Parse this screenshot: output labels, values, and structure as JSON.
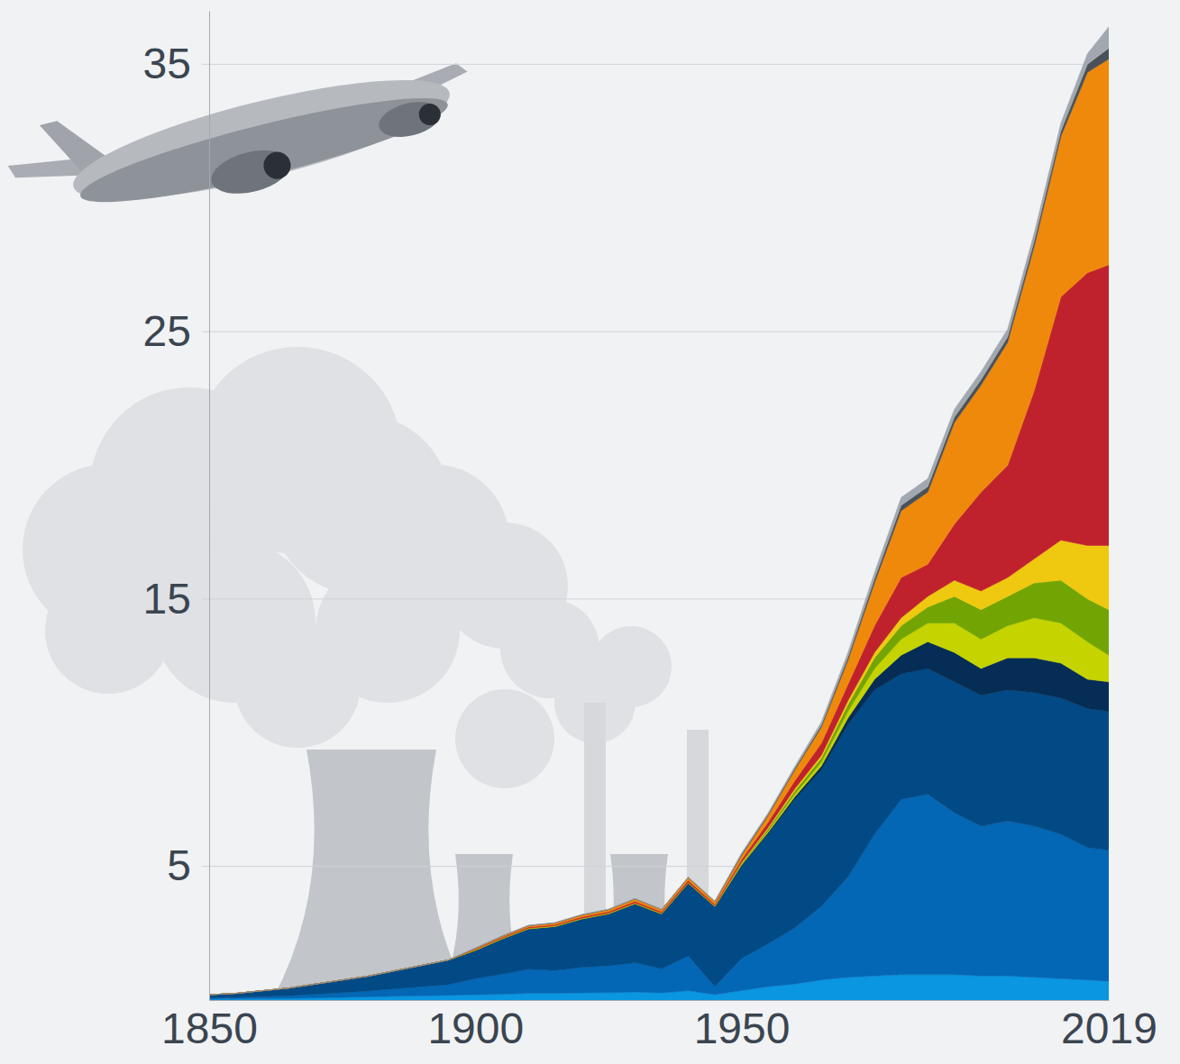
{
  "chart_data": {
    "type": "area",
    "stacked": true,
    "grid": true,
    "x": [
      1850,
      1855,
      1860,
      1865,
      1870,
      1875,
      1880,
      1885,
      1890,
      1895,
      1900,
      1905,
      1910,
      1915,
      1920,
      1925,
      1930,
      1935,
      1940,
      1945,
      1950,
      1955,
      1960,
      1965,
      1970,
      1975,
      1980,
      1985,
      1990,
      1995,
      2000,
      2005,
      2010,
      2015,
      2019
    ],
    "xlim": [
      1850,
      2019
    ],
    "xticks": [
      1850,
      1900,
      1950,
      2019
    ],
    "ylim": [
      0,
      37
    ],
    "yticks": [
      5,
      15,
      25,
      35
    ],
    "series": [
      {
        "color": "#0a96e0",
        "values": [
          0.03,
          0.04,
          0.05,
          0.06,
          0.08,
          0.1,
          0.12,
          0.14,
          0.16,
          0.18,
          0.2,
          0.22,
          0.25,
          0.25,
          0.27,
          0.28,
          0.3,
          0.27,
          0.35,
          0.2,
          0.35,
          0.5,
          0.6,
          0.75,
          0.85,
          0.9,
          0.95,
          0.95,
          0.95,
          0.9,
          0.9,
          0.85,
          0.8,
          0.75,
          0.7
        ]
      },
      {
        "color": "#0467b5",
        "values": [
          0.05,
          0.06,
          0.08,
          0.1,
          0.14,
          0.18,
          0.22,
          0.28,
          0.34,
          0.4,
          0.6,
          0.75,
          0.9,
          0.85,
          0.95,
          1.0,
          1.1,
          0.9,
          1.3,
          0.3,
          1.2,
          1.6,
          2.1,
          2.75,
          3.75,
          5.3,
          6.55,
          6.75,
          6.05,
          5.6,
          5.8,
          5.65,
          5.4,
          4.95,
          4.9
        ]
      },
      {
        "color": "#024a86",
        "values": [
          0.12,
          0.15,
          0.22,
          0.29,
          0.38,
          0.47,
          0.56,
          0.68,
          0.8,
          0.92,
          1.04,
          1.3,
          1.5,
          1.64,
          1.8,
          1.93,
          2.19,
          2.04,
          2.71,
          2.99,
          3.45,
          4.1,
          4.8,
          5.1,
          5.7,
          5.4,
          4.7,
          4.7,
          4.9,
          4.9,
          4.9,
          5.0,
          5.1,
          5.2,
          5.2
        ]
      },
      {
        "color": "#052d55",
        "values": [
          0,
          0,
          0,
          0,
          0,
          0,
          0,
          0,
          0,
          0,
          0.01,
          0.01,
          0.01,
          0.01,
          0.01,
          0.01,
          0.01,
          0.01,
          0.01,
          0.01,
          0.05,
          0.07,
          0.1,
          0.15,
          0.25,
          0.4,
          0.7,
          1.0,
          1.1,
          1.0,
          1.2,
          1.3,
          1.3,
          1.1,
          1.1
        ]
      },
      {
        "color": "#c5d300",
        "values": [
          0,
          0,
          0,
          0,
          0,
          0,
          0,
          0,
          0,
          0,
          0.01,
          0.01,
          0.01,
          0.01,
          0.01,
          0.01,
          0.01,
          0.01,
          0.01,
          0.01,
          0.03,
          0.05,
          0.1,
          0.15,
          0.25,
          0.4,
          0.6,
          0.7,
          1.1,
          1.1,
          1.2,
          1.5,
          1.5,
          1.4,
          1.0
        ]
      },
      {
        "color": "#72a504",
        "values": [
          0,
          0,
          0,
          0,
          0,
          0,
          0,
          0,
          0,
          0,
          0.01,
          0.01,
          0.01,
          0.01,
          0.01,
          0.01,
          0.01,
          0.01,
          0.01,
          0.01,
          0.04,
          0.08,
          0.12,
          0.15,
          0.25,
          0.4,
          0.5,
          0.6,
          1.0,
          1.1,
          1.1,
          1.3,
          1.6,
          1.6,
          1.7
        ]
      },
      {
        "color": "#efc90f",
        "values": [
          0,
          0,
          0,
          0,
          0,
          0,
          0,
          0,
          0,
          0,
          0.01,
          0.01,
          0.01,
          0.01,
          0.01,
          0.01,
          0.01,
          0.01,
          0.01,
          0.01,
          0.03,
          0.05,
          0.08,
          0.1,
          0.15,
          0.2,
          0.3,
          0.4,
          0.6,
          0.7,
          0.7,
          0.9,
          1.5,
          2.0,
          2.4
        ]
      },
      {
        "color": "#c0222d",
        "values": [
          0,
          0,
          0,
          0,
          0,
          0,
          0,
          0,
          0,
          0,
          0.02,
          0.03,
          0.04,
          0.04,
          0.05,
          0.05,
          0.06,
          0.05,
          0.07,
          0.05,
          0.1,
          0.2,
          0.3,
          0.45,
          0.6,
          1.0,
          1.5,
          1.2,
          2.1,
          3.7,
          4.2,
          6.3,
          9.1,
          10.2,
          10.5
        ]
      },
      {
        "color": "#ee890c",
        "values": [
          0,
          0,
          0,
          0,
          0,
          0,
          0,
          0,
          0,
          0,
          0.03,
          0.04,
          0.05,
          0.06,
          0.07,
          0.08,
          0.09,
          0.08,
          0.11,
          0.1,
          0.15,
          0.25,
          0.4,
          0.6,
          0.9,
          1.6,
          2.5,
          2.7,
          3.8,
          4.0,
          4.6,
          5.4,
          6.0,
          7.5,
          7.7
        ]
      },
      {
        "color": "#4a5159",
        "values": [
          0,
          0,
          0,
          0,
          0,
          0,
          0,
          0,
          0,
          0,
          0.01,
          0.01,
          0.01,
          0.01,
          0.01,
          0.01,
          0.01,
          0.01,
          0.01,
          0.01,
          0.05,
          0.05,
          0.06,
          0.08,
          0.12,
          0.16,
          0.2,
          0.2,
          0.2,
          0.2,
          0.2,
          0.2,
          0.2,
          0.3,
          0.4
        ]
      },
      {
        "color": "#a2a8b0",
        "values": [
          0,
          0,
          0,
          0,
          0,
          0,
          0,
          0,
          0,
          0,
          0.01,
          0.01,
          0.01,
          0.01,
          0.01,
          0.01,
          0.01,
          0.01,
          0.01,
          0.01,
          0.05,
          0.05,
          0.08,
          0.12,
          0.18,
          0.24,
          0.3,
          0.3,
          0.3,
          0.3,
          0.3,
          0.3,
          0.3,
          0.4,
          0.8
        ]
      }
    ]
  }
}
